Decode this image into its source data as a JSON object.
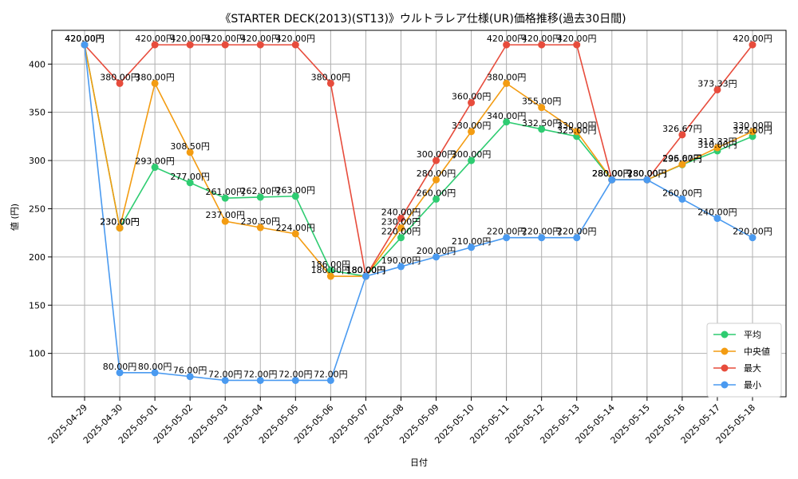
{
  "chart_data": {
    "type": "line",
    "title": "《STARTER DECK(2013)(ST13)》ウルトラレア仕様(UR)価格推移(過去30日間)",
    "xlabel": "日付",
    "ylabel": "値 (円)",
    "x": [
      "2025-04-29",
      "2025-04-30",
      "2025-05-01",
      "2025-05-02",
      "2025-05-03",
      "2025-05-04",
      "2025-05-05",
      "2025-05-06",
      "2025-05-07",
      "2025-05-08",
      "2025-05-09",
      "2025-05-10",
      "2025-05-11",
      "2025-05-12",
      "2025-05-13",
      "2025-05-14",
      "2025-05-15",
      "2025-05-16",
      "2025-05-17",
      "2025-05-18"
    ],
    "ylim": [
      55,
      435
    ],
    "yticks": [
      100,
      150,
      200,
      250,
      300,
      350,
      400
    ],
    "grid": true,
    "legend_position": "lower-right",
    "series": [
      {
        "name": "平均",
        "color": "#2ecc71",
        "values": [
          420,
          230,
          293,
          277,
          261,
          262,
          263,
          186,
          180,
          220,
          260,
          300,
          340,
          332.5,
          325,
          280,
          280,
          295.67,
          310,
          325
        ],
        "labels": [
          "420.00円",
          "230.00円",
          "293.00円",
          "277.00円",
          "261.00円",
          "262.00円",
          "263.00円",
          "186.00円",
          "180.00円",
          "220.00円",
          "260.00円",
          "300.00円",
          "340.00円",
          "332.50円",
          "325.00円",
          "280.00円",
          "280.00円",
          "295.67円",
          "310.00円",
          "325.00円"
        ]
      },
      {
        "name": "中央値",
        "color": "#f39c12",
        "values": [
          420,
          230,
          380,
          308.5,
          237,
          230.5,
          224,
          180,
          180,
          230,
          280,
          330,
          380,
          355,
          330,
          280,
          280,
          296,
          313.33,
          330
        ],
        "labels": [
          "420.00円",
          "230.00円",
          "380.00円",
          "308.50円",
          "237.00円",
          "230.50円",
          "224.00円",
          "180.00円",
          "180.00円",
          "230.00円",
          "280.00円",
          "330.00円",
          "380.00円",
          "355.00円",
          "330.00円",
          "280.00円",
          "280.00円",
          "296.00円",
          "313.33円",
          "330.00円"
        ]
      },
      {
        "name": "最大",
        "color": "#e74c3c",
        "values": [
          420,
          380,
          420,
          420,
          420,
          420,
          420,
          380,
          180,
          240,
          300,
          360,
          420,
          420,
          420,
          280,
          280,
          326.67,
          373.33,
          420
        ],
        "labels": [
          "420.00円",
          "380.00円",
          "420.00円",
          "420.00円",
          "420.00円",
          "420.00円",
          "420.00円",
          "380.00円",
          "180.00円",
          "240.00円",
          "300.00円",
          "360.00円",
          "420.00円",
          "420.00円",
          "420.00円",
          "280.00円",
          "280.00円",
          "326.67円",
          "373.33円",
          "420.00円"
        ]
      },
      {
        "name": "最小",
        "color": "#4a9af0",
        "values": [
          420,
          80,
          80,
          76,
          72,
          72,
          72,
          72,
          180,
          190,
          200,
          210,
          220,
          220,
          220,
          280,
          280,
          260,
          240,
          220
        ],
        "labels": [
          "420.00円",
          "80.00円",
          "80.00円",
          "76.00円",
          "72.00円",
          "72.00円",
          "72.00円",
          "72.00円",
          "180.00円",
          "190.00円",
          "200.00円",
          "210.00円",
          "220.00円",
          "220.00円",
          "220.00円",
          "280.00円",
          "280.00円",
          "260.00円",
          "240.00円",
          "220.00円"
        ]
      }
    ]
  }
}
